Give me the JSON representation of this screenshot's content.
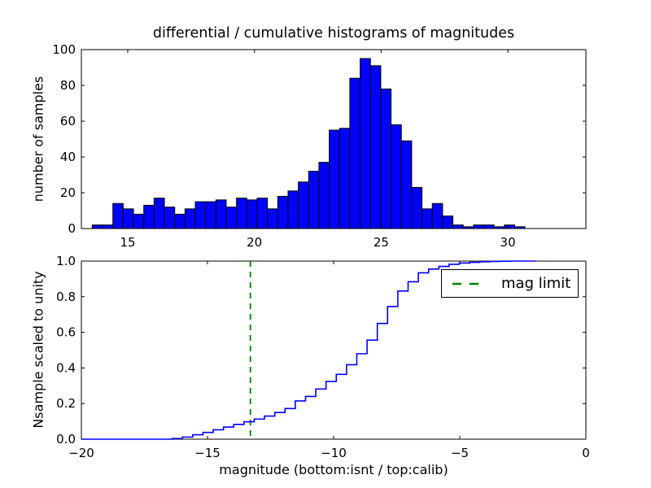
{
  "figure": {
    "title": "differential / cumulative histograms of magnitudes",
    "background": "#ffffff"
  },
  "colors": {
    "hist_fill": "#0000ff",
    "hist_edge": "#000000",
    "cumulative_line": "#0000ff",
    "mag_limit_line": "#008000",
    "axes_frame": "#000000",
    "text": "#000000"
  },
  "legend": {
    "label": "mag limit",
    "position": "upper right"
  },
  "chart_data": [
    {
      "type": "bar",
      "subplot": "top",
      "title": "differential / cumulative histograms of magnitudes",
      "xlabel": "",
      "ylabel": "number of samples",
      "xlim": [
        13.17,
        33.08
      ],
      "ylim": [
        0,
        100
      ],
      "xticks": [
        15,
        20,
        25,
        30
      ],
      "xtick_labels": [
        "15",
        "20",
        "25",
        "30"
      ],
      "yticks": [
        0,
        20,
        40,
        60,
        80,
        100
      ],
      "ytick_labels": [
        "0",
        "20",
        "40",
        "60",
        "80",
        "100"
      ],
      "grid": false,
      "bin_start": 13.6,
      "bin_width": 0.4066,
      "counts": [
        2,
        2,
        14,
        11,
        8,
        13,
        17,
        12,
        8,
        11,
        15,
        15,
        16,
        12,
        17,
        16,
        17,
        11,
        18,
        21,
        26,
        32,
        37,
        55,
        56,
        84,
        95,
        91,
        78,
        58,
        49,
        23,
        11,
        14,
        7,
        2,
        1,
        2,
        2,
        1,
        2,
        1
      ]
    },
    {
      "type": "line",
      "subplot": "bottom",
      "style": "cumulative-step",
      "xlabel": "magnitude (bottom:isnt / top:calib)",
      "ylabel": "Nsample scaled to unity",
      "xlim": [
        -20,
        0
      ],
      "ylim": [
        0.0,
        1.0
      ],
      "xticks": [
        -20,
        -15,
        -10,
        -5,
        0
      ],
      "xtick_labels": [
        "−20",
        "−15",
        "−10",
        "−5",
        "0"
      ],
      "yticks": [
        0.0,
        0.2,
        0.4,
        0.6,
        0.8,
        1.0
      ],
      "ytick_labels": [
        "0.0",
        "0.2",
        "0.4",
        "0.6",
        "0.8",
        "1.0"
      ],
      "grid": false,
      "flat_zero_from": -20.0,
      "step_start": -16.4,
      "step_width": 0.4066,
      "cumulative": [
        0.004,
        0.012,
        0.025,
        0.038,
        0.053,
        0.068,
        0.083,
        0.098,
        0.113,
        0.13,
        0.15,
        0.172,
        0.215,
        0.24,
        0.282,
        0.324,
        0.364,
        0.418,
        0.48,
        0.556,
        0.65,
        0.745,
        0.832,
        0.884,
        0.934,
        0.955,
        0.97,
        0.982,
        0.989,
        0.993,
        0.996,
        0.998,
        0.999,
        1.0
      ],
      "flat_one_until": -2.0,
      "mag_limit": -13.3
    }
  ]
}
